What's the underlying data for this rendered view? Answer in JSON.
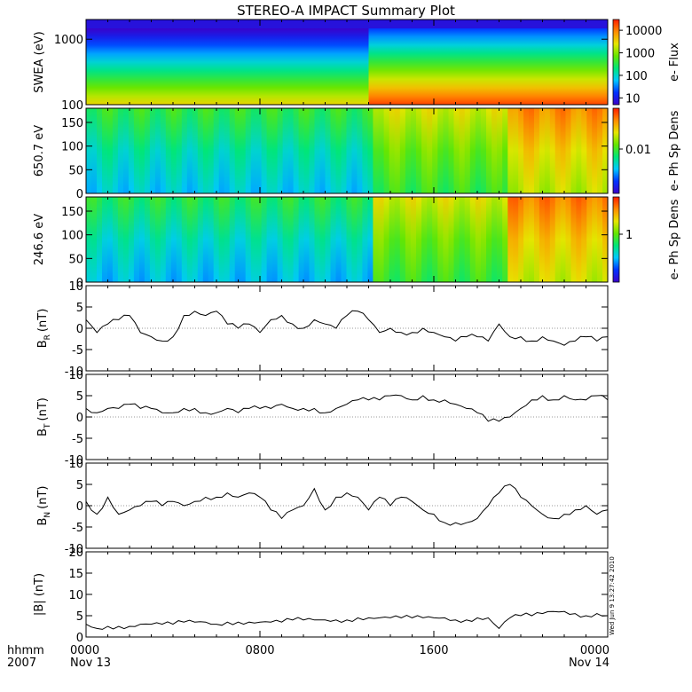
{
  "title": "STEREO-A IMPACT Summary Plot",
  "footer": {
    "x_label_line1": "hhmm",
    "x_label_line2": "2007",
    "ticks": [
      {
        "time": "0000",
        "date": "Nov 13",
        "hour": 0
      },
      {
        "time": "0800",
        "date": "",
        "hour": 8
      },
      {
        "time": "1600",
        "date": "",
        "hour": 16
      },
      {
        "time": "0000",
        "date": "Nov 14",
        "hour": 24
      }
    ]
  },
  "timestamp": "Wed Jun  9 13:27:42 2010",
  "colors": {
    "spectrogram": [
      "#3c00c8",
      "#0032ff",
      "#00c8ff",
      "#00e678",
      "#64e600",
      "#e6e600",
      "#ff8c00",
      "#ff1e00"
    ],
    "line": "#000000"
  },
  "chart_data": [
    {
      "type": "heatmap",
      "ylabel": "SWEA (eV)",
      "yscale": "log",
      "ylim": [
        100,
        2000
      ],
      "yticks": [
        "100",
        "1000"
      ],
      "colorbar_label": "e- Flux",
      "colorbar_scale": "log",
      "colorbar_range": [
        5,
        30000
      ],
      "colorbar_ticks": [
        "10",
        "100",
        "1000",
        "10000"
      ],
      "x_hours": [
        0,
        12.8,
        13.2,
        24
      ],
      "log_flux_at_100eV": [
        3.5,
        3.6,
        4.1,
        4.3
      ],
      "log_flux_at_2000eV": [
        0.4,
        0.5,
        0.7,
        0.9
      ]
    },
    {
      "type": "heatmap",
      "ylabel": "650.7 eV",
      "ylim": [
        0,
        180
      ],
      "yticks": [
        "0",
        "50",
        "100",
        "150"
      ],
      "colorbar_label": "e- Ph Sp Dens",
      "colorbar_ticks": [
        "0.01"
      ],
      "segments_hours": [
        0,
        13.2,
        19.4,
        24
      ],
      "level_by_segment": [
        0.42,
        0.62,
        0.78
      ]
    },
    {
      "type": "heatmap",
      "ylabel": "246.6 eV",
      "ylim": [
        0,
        180
      ],
      "yticks": [
        "0",
        "50",
        "100",
        "150"
      ],
      "colorbar_label": "e- Ph Sp Dens",
      "colorbar_ticks": [
        "1"
      ],
      "segments_hours": [
        0,
        13.2,
        19.4,
        24
      ],
      "level_by_segment": [
        0.4,
        0.62,
        0.8
      ]
    },
    {
      "type": "line",
      "ylabel": "B_R (nT)",
      "ylabel_main": "B",
      "ylabel_sub": "R",
      "ylabel_unit": "(nT)",
      "ylim": [
        -10,
        10
      ],
      "yticks": [
        "-10",
        "-5",
        "0",
        "5",
        "10"
      ],
      "x": [
        0,
        0.5,
        1,
        1.5,
        2,
        2.5,
        3,
        3.5,
        4,
        4.5,
        5,
        5.5,
        6,
        6.5,
        7,
        7.5,
        8,
        8.5,
        9,
        9.5,
        10,
        10.5,
        11,
        11.5,
        12,
        12.5,
        13,
        13.5,
        14,
        14.5,
        15,
        15.5,
        16,
        16.5,
        17,
        17.5,
        18,
        18.5,
        19,
        19.5,
        20,
        20.5,
        21,
        21.5,
        22,
        22.5,
        23,
        23.5,
        24
      ],
      "y": [
        2,
        -1,
        1,
        2,
        3,
        -1,
        -2,
        -3,
        -2,
        3,
        4,
        3,
        4,
        1,
        0,
        1,
        -1,
        2,
        3,
        1,
        0,
        2,
        1,
        0,
        3,
        4,
        2,
        -1,
        0,
        -1,
        -1,
        0,
        -1,
        -2,
        -3,
        -2,
        -2,
        -3,
        1,
        -2,
        -2,
        -3,
        -2,
        -3,
        -4,
        -3,
        -2,
        -3,
        -2
      ]
    },
    {
      "type": "line",
      "ylabel": "B_T (nT)",
      "ylabel_main": "B",
      "ylabel_sub": "T",
      "ylabel_unit": "(nT)",
      "ylim": [
        -10,
        10
      ],
      "yticks": [
        "-10",
        "-5",
        "0",
        "5",
        "10"
      ],
      "x": [
        0,
        0.5,
        1,
        1.5,
        2,
        2.5,
        3,
        3.5,
        4,
        4.5,
        5,
        5.5,
        6,
        6.5,
        7,
        7.5,
        8,
        8.5,
        9,
        9.5,
        10,
        10.5,
        11,
        11.5,
        12,
        12.5,
        13,
        13.5,
        14,
        14.5,
        15,
        15.5,
        16,
        16.5,
        17,
        17.5,
        18,
        18.5,
        19,
        19.5,
        20,
        20.5,
        21,
        21.5,
        22,
        22.5,
        23,
        23.5,
        24
      ],
      "y": [
        2,
        1,
        2,
        2,
        3,
        2,
        2,
        1,
        1,
        2,
        2,
        1,
        1,
        2,
        1,
        2,
        2,
        2,
        3,
        2,
        2,
        2,
        1,
        2,
        3,
        4,
        4,
        4,
        5,
        5,
        4,
        5,
        4,
        4,
        3,
        2,
        1,
        -1,
        -1,
        0,
        2,
        4,
        5,
        4,
        5,
        4,
        4,
        5,
        4
      ]
    },
    {
      "type": "line",
      "ylabel": "B_N (nT)",
      "ylabel_main": "B",
      "ylabel_sub": "N",
      "ylabel_unit": "(nT)",
      "ylim": [
        -10,
        10
      ],
      "yticks": [
        "-10",
        "-5",
        "0",
        "5",
        "10"
      ],
      "x": [
        0,
        0.5,
        1,
        1.5,
        2,
        2.5,
        3,
        3.5,
        4,
        4.5,
        5,
        5.5,
        6,
        6.5,
        7,
        7.5,
        8,
        8.5,
        9,
        9.5,
        10,
        10.5,
        11,
        11.5,
        12,
        12.5,
        13,
        13.5,
        14,
        14.5,
        15,
        15.5,
        16,
        16.5,
        17,
        17.5,
        18,
        18.5,
        19,
        19.5,
        20,
        20.5,
        21,
        21.5,
        22,
        22.5,
        23,
        23.5,
        24
      ],
      "y": [
        1,
        -2,
        2,
        -2,
        -1,
        0,
        1,
        0,
        1,
        0,
        1,
        2,
        2,
        3,
        2,
        3,
        2,
        -1,
        -3,
        -1,
        0,
        4,
        -1,
        2,
        3,
        2,
        -1,
        2,
        0,
        2,
        1,
        -1,
        -2,
        -4,
        -4,
        -4,
        -3,
        0,
        3,
        5,
        2,
        0,
        -2,
        -3,
        -2,
        -1,
        0,
        -2,
        -1
      ]
    },
    {
      "type": "line",
      "ylabel": "|B| (nT)",
      "ylim": [
        0,
        20
      ],
      "yticks": [
        "0",
        "5",
        "10",
        "15",
        "20"
      ],
      "x": [
        0,
        0.5,
        1,
        1.5,
        2,
        2.5,
        3,
        3.5,
        4,
        4.5,
        5,
        5.5,
        6,
        6.5,
        7,
        7.5,
        8,
        8.5,
        9,
        9.5,
        10,
        10.5,
        11,
        11.5,
        12,
        12.5,
        13,
        13.5,
        14,
        14.5,
        15,
        15.5,
        16,
        16.5,
        17,
        17.5,
        18,
        18.5,
        19,
        19.5,
        20,
        20.5,
        21,
        21.5,
        22,
        22.5,
        23,
        23.5,
        24
      ],
      "y": [
        3,
        2,
        2.5,
        2.5,
        2.5,
        3,
        3,
        3,
        3,
        3.5,
        3.5,
        3.5,
        3,
        3.5,
        3.5,
        3.5,
        3.5,
        3.5,
        3.5,
        4,
        4,
        4,
        4,
        4,
        4,
        4.5,
        4.5,
        4.5,
        4.5,
        4.5,
        4.5,
        4.5,
        4.5,
        4.5,
        4,
        4,
        4.5,
        4.5,
        2,
        4.5,
        5,
        5,
        5.5,
        6,
        6,
        5.5,
        5,
        5.5,
        5
      ]
    }
  ]
}
